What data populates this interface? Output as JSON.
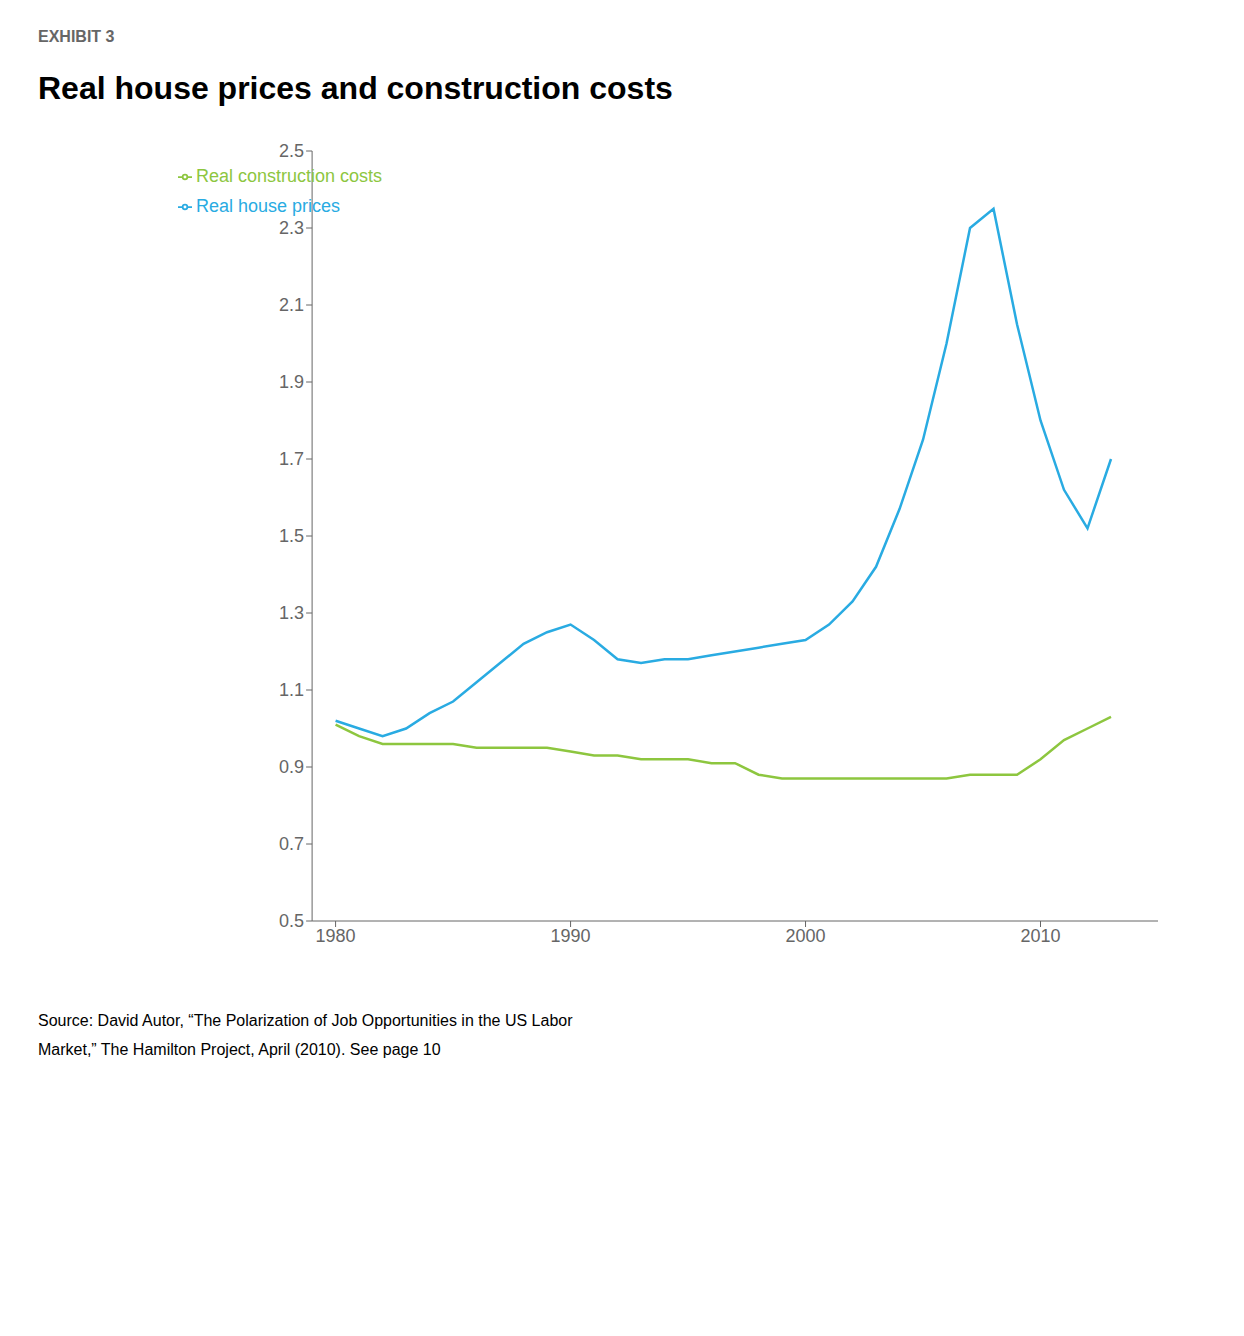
{
  "chart_data": {
    "type": "line",
    "title": "Real house prices and construction costs",
    "subtitle": "EXHIBIT 3",
    "annotations": [
      "Source: David Autor, “The Polarization of Job Opportunities in the US Labor\nMarket,” The Hamilton Project, April (2010). See page 10"
    ],
    "x": [
      1980,
      1981,
      1982,
      1983,
      1984,
      1985,
      1986,
      1987,
      1988,
      1989,
      1990,
      1991,
      1992,
      1993,
      1994,
      1995,
      1996,
      1997,
      1998,
      1999,
      2000,
      2001,
      2002,
      2003,
      2004,
      2005,
      2006,
      2007,
      2008,
      2009,
      2010,
      2011,
      2012,
      2013
    ],
    "series": [
      {
        "name": "Real house prices",
        "color": "#29abe2",
        "values": [
          1.02,
          1.0,
          0.98,
          1.0,
          1.04,
          1.07,
          1.12,
          1.17,
          1.22,
          1.25,
          1.27,
          1.23,
          1.18,
          1.17,
          1.18,
          1.18,
          1.19,
          1.2,
          1.21,
          1.22,
          1.23,
          1.27,
          1.33,
          1.42,
          1.57,
          1.75,
          2.0,
          2.3,
          2.35,
          2.05,
          1.8,
          1.62,
          1.52,
          1.7
        ]
      },
      {
        "name": "Real construction costs",
        "color": "#8dc63f",
        "values": [
          1.01,
          0.98,
          0.96,
          0.96,
          0.96,
          0.96,
          0.95,
          0.95,
          0.95,
          0.95,
          0.94,
          0.93,
          0.93,
          0.92,
          0.92,
          0.92,
          0.91,
          0.91,
          0.88,
          0.87,
          0.87,
          0.87,
          0.87,
          0.87,
          0.87,
          0.87,
          0.87,
          0.88,
          0.88,
          0.88,
          0.92,
          0.97,
          1.0,
          1.03
        ]
      }
    ],
    "xlim": [
      1979,
      2015
    ],
    "xticks": [
      1980,
      1990,
      2000,
      2010
    ],
    "ylim": [
      0.5,
      2.5
    ],
    "yticks": [
      0.5,
      0.7,
      0.9,
      1.1,
      1.3,
      1.5,
      1.7,
      1.9,
      2.1,
      2.3,
      2.5
    ],
    "grid": false,
    "legend": "upper left"
  }
}
